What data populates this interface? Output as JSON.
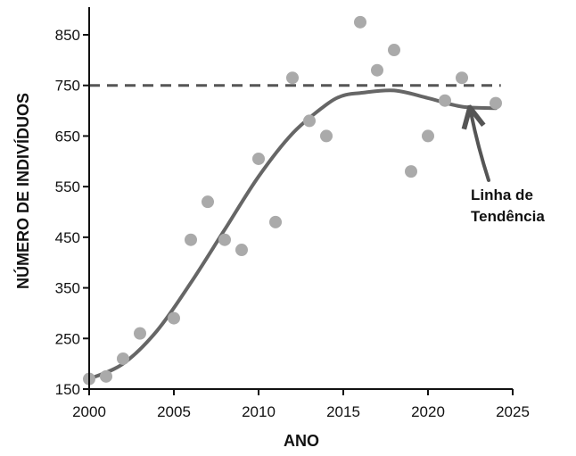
{
  "chart_data": {
    "type": "scatter",
    "title": "",
    "xlabel": "ANO",
    "ylabel": "NÚMERO DE INDIVÍDUOS",
    "xlim": [
      2000,
      2025
    ],
    "ylim": [
      150,
      900
    ],
    "x_ticks": [
      2000,
      2005,
      2010,
      2015,
      2020,
      2025
    ],
    "y_ticks": [
      150,
      250,
      350,
      450,
      550,
      650,
      750,
      850
    ],
    "grid": false,
    "points": {
      "x": [
        2000,
        2001,
        2002,
        2003,
        2005,
        2006,
        2007,
        2008,
        2009,
        2010,
        2011,
        2012,
        2013,
        2014,
        2016,
        2017,
        2018,
        2019,
        2020,
        2021,
        2022,
        2024
      ],
      "y": [
        170,
        175,
        210,
        260,
        290,
        445,
        520,
        445,
        425,
        605,
        480,
        765,
        680,
        650,
        875,
        780,
        820,
        580,
        650,
        720,
        765,
        715
      ]
    },
    "trend_line": {
      "x": [
        2000,
        2002,
        2004,
        2006,
        2008,
        2010,
        2012,
        2014,
        2015,
        2016,
        2018,
        2020,
        2022,
        2024
      ],
      "y": [
        170,
        200,
        265,
        360,
        465,
        570,
        655,
        712,
        730,
        735,
        740,
        725,
        708,
        705
      ]
    },
    "reference_line": {
      "y": 750,
      "style": "dashed"
    },
    "annotation": {
      "lines": [
        "Linha de",
        "Tendência"
      ],
      "arrow_to": [
        2022.5,
        712
      ]
    },
    "colors": {
      "points": "#aaaaaa",
      "trend": "#666666",
      "reference": "#555555",
      "axis": "#111111"
    }
  }
}
